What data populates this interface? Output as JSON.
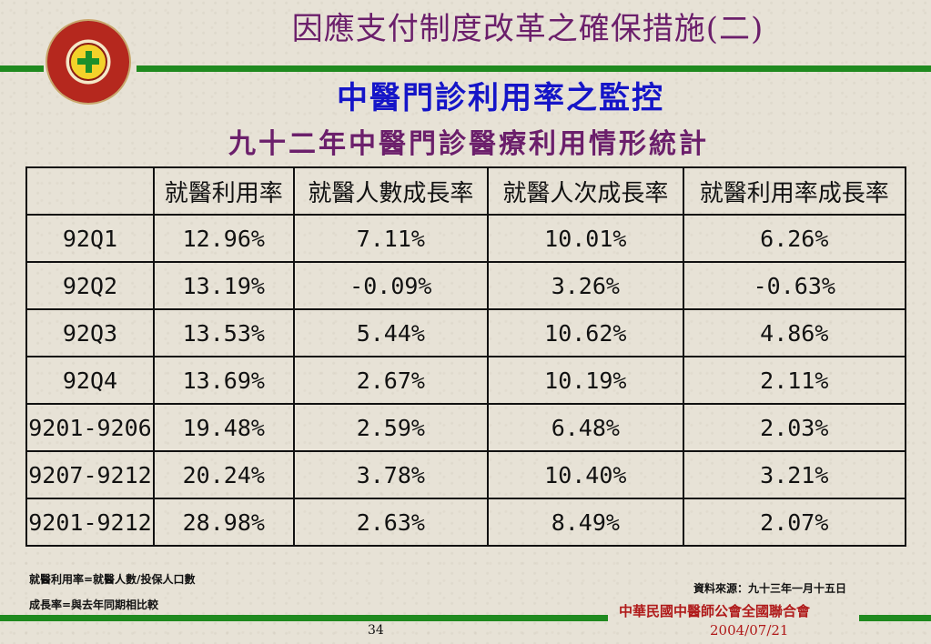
{
  "title": "因應支付制度改革之確保措施(二)",
  "subtitle": "中醫門診利用率之監控",
  "table_title": "九十二年中醫門診醫療利用情形統計",
  "table": {
    "headers": [
      "",
      "就醫利用率",
      "就醫人數成長率",
      "就醫人次成長率",
      "就醫利用率成長率"
    ],
    "rows": [
      [
        "92Q1",
        "12.96%",
        "7.11%",
        "10.01%",
        "6.26%"
      ],
      [
        "92Q2",
        "13.19%",
        "-0.09%",
        "3.26%",
        "-0.63%"
      ],
      [
        "92Q3",
        "13.53%",
        "5.44%",
        "10.62%",
        "4.86%"
      ],
      [
        "92Q4",
        "13.69%",
        "2.67%",
        "10.19%",
        "2.11%"
      ],
      [
        "9201-9206",
        "19.48%",
        "2.59%",
        "6.48%",
        "2.03%"
      ],
      [
        "9207-9212",
        "20.24%",
        "3.78%",
        "10.40%",
        "3.21%"
      ],
      [
        "9201-9212",
        "28.98%",
        "2.63%",
        "8.49%",
        "2.07%"
      ]
    ]
  },
  "notes": {
    "utilization_definition": "就醫利用率=就醫人數/投保人口數",
    "growth_definition": "成長率=與去年同期相比較",
    "source": "資料來源：九十三年一月十五日"
  },
  "footer": {
    "page_number": "34",
    "organization": "中華民國中醫師公會全國聯合會",
    "date": "2004/07/21"
  },
  "colors": {
    "title": "#6b1f6b",
    "subtitle": "#1515c8",
    "accent_line": "#1f8a1f",
    "footer_text": "#b01a1a"
  },
  "logo": {
    "icon": "green-cross-seal-icon"
  }
}
